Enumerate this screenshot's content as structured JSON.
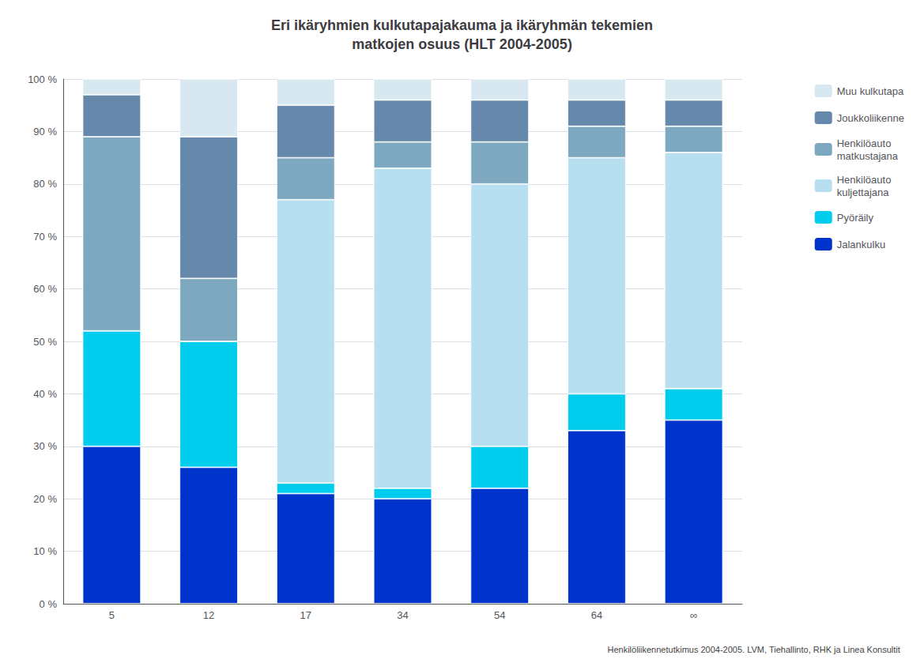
{
  "chart_data": {
    "type": "bar",
    "title": "Eri ikäryhmien kulkutapajakauma ja ikäryhmän tekemien\nmatkojen osuus (HLT 2004-2005)",
    "categories": [
      "5",
      "12",
      "17",
      "34",
      "54",
      "64",
      "∞"
    ],
    "series": [
      {
        "name": "Jalankulku",
        "color": "#0033cc",
        "values": [
          30,
          26,
          21,
          20,
          22,
          33,
          35
        ]
      },
      {
        "name": "Pyöräily",
        "color": "#00ccee",
        "values": [
          22,
          24,
          2,
          2,
          8,
          7,
          6
        ]
      },
      {
        "name": "Henkilöauto\nkuljettajana",
        "color": "#b8dff0",
        "values": [
          0,
          0,
          54,
          61,
          50,
          45,
          45
        ]
      },
      {
        "name": "Henkilöauto\nmatkustajana",
        "color": "#7ea8c0",
        "values": [
          37,
          12,
          8,
          5,
          8,
          6,
          5
        ]
      },
      {
        "name": "Joukkoliikenne",
        "color": "#6688aa",
        "values": [
          8,
          27,
          10,
          8,
          8,
          5,
          5
        ]
      },
      {
        "name": "Muu kulkutapa",
        "color": "#d8e8f0",
        "values": [
          3,
          11,
          5,
          4,
          4,
          4,
          4
        ]
      }
    ],
    "stacked": true,
    "ylim": [
      0,
      100
    ],
    "yticks": [
      {
        "value": 0,
        "label": "0 %"
      },
      {
        "value": 10,
        "label": "10 %"
      },
      {
        "value": 20,
        "label": "20 %"
      },
      {
        "value": 30,
        "label": "30 %"
      },
      {
        "value": 40,
        "label": "40 %"
      },
      {
        "value": 50,
        "label": "50 %"
      },
      {
        "value": 60,
        "label": "60 %"
      },
      {
        "value": 70,
        "label": "70 %"
      },
      {
        "value": 80,
        "label": "80 %"
      },
      {
        "value": 90,
        "label": "90 %"
      },
      {
        "value": 100,
        "label": "100 %"
      }
    ],
    "grid": true,
    "legend": "right",
    "annotations": [
      "Henkilöliikennetutkimus 2004-2005. LVM, Tiehallinto, RHK ja Linea Konsultit"
    ]
  }
}
